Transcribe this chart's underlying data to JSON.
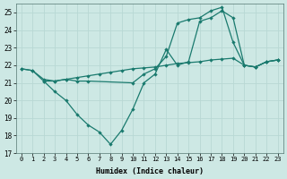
{
  "xlabel": "Humidex (Indice chaleur)",
  "bg_color": "#cde8e4",
  "line_color": "#1a7a6e",
  "grid_color": "#b8d8d4",
  "xlim": [
    -0.5,
    23.5
  ],
  "ylim": [
    17.0,
    25.5
  ],
  "yticks": [
    17,
    18,
    19,
    20,
    21,
    22,
    23,
    24,
    25
  ],
  "xticks": [
    0,
    1,
    2,
    3,
    4,
    5,
    6,
    7,
    8,
    9,
    10,
    11,
    12,
    13,
    14,
    15,
    16,
    17,
    18,
    19,
    20,
    21,
    22,
    23
  ],
  "line1_x": [
    0,
    1,
    2,
    3,
    4,
    5,
    6,
    7,
    8,
    9,
    10,
    11,
    12,
    13,
    14,
    15,
    16,
    17,
    18,
    19,
    20,
    21,
    22,
    23
  ],
  "line1_y": [
    21.8,
    21.7,
    21.2,
    21.1,
    21.2,
    21.3,
    21.4,
    21.5,
    21.6,
    21.7,
    21.8,
    21.85,
    21.9,
    22.0,
    22.1,
    22.15,
    22.2,
    22.3,
    22.35,
    22.4,
    22.0,
    21.9,
    22.2,
    22.3
  ],
  "line2_x": [
    0,
    1,
    2,
    3,
    4,
    5,
    6,
    7,
    8,
    9,
    10,
    11,
    12,
    13,
    14,
    15,
    16,
    17,
    18,
    19,
    20,
    21,
    22,
    23
  ],
  "line2_y": [
    21.8,
    21.7,
    21.1,
    20.5,
    20.0,
    19.2,
    18.6,
    18.2,
    17.5,
    18.3,
    19.5,
    21.0,
    21.5,
    22.9,
    22.0,
    22.2,
    24.5,
    24.7,
    25.1,
    24.7,
    22.0,
    21.9,
    22.2,
    22.3
  ],
  "line3_x": [
    2,
    3,
    4,
    5,
    6,
    10,
    11,
    12,
    13,
    14,
    15,
    16,
    17,
    18,
    19,
    20,
    21,
    22,
    23
  ],
  "line3_y": [
    21.1,
    21.1,
    21.2,
    21.1,
    21.1,
    21.0,
    21.5,
    21.8,
    22.5,
    24.4,
    24.6,
    24.7,
    25.1,
    25.3,
    23.3,
    22.0,
    21.9,
    22.2,
    22.3
  ]
}
